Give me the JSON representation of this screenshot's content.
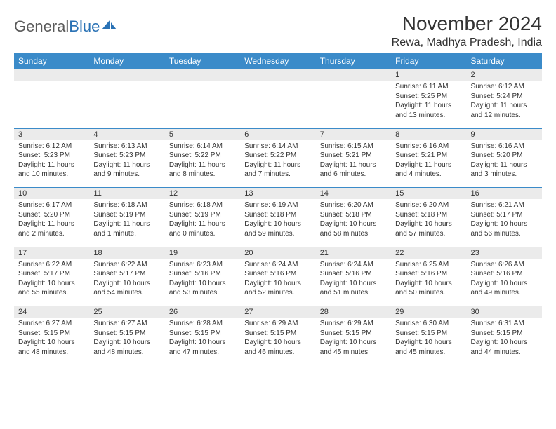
{
  "logo": {
    "text1": "General",
    "text2": "Blue"
  },
  "title": "November 2024",
  "location": "Rewa, Madhya Pradesh, India",
  "colors": {
    "header_bg": "#3b8bc9",
    "header_text": "#ffffff",
    "daynum_bg": "#ebebeb",
    "border": "#3b8bc9",
    "text": "#333333",
    "logo_gray": "#5a5a5a",
    "logo_blue": "#2a72b5"
  },
  "daysOfWeek": [
    "Sunday",
    "Monday",
    "Tuesday",
    "Wednesday",
    "Thursday",
    "Friday",
    "Saturday"
  ],
  "weeks": [
    [
      null,
      null,
      null,
      null,
      null,
      {
        "n": "1",
        "sr": "Sunrise: 6:11 AM",
        "ss": "Sunset: 5:25 PM",
        "dl": "Daylight: 11 hours and 13 minutes."
      },
      {
        "n": "2",
        "sr": "Sunrise: 6:12 AM",
        "ss": "Sunset: 5:24 PM",
        "dl": "Daylight: 11 hours and 12 minutes."
      }
    ],
    [
      {
        "n": "3",
        "sr": "Sunrise: 6:12 AM",
        "ss": "Sunset: 5:23 PM",
        "dl": "Daylight: 11 hours and 10 minutes."
      },
      {
        "n": "4",
        "sr": "Sunrise: 6:13 AM",
        "ss": "Sunset: 5:23 PM",
        "dl": "Daylight: 11 hours and 9 minutes."
      },
      {
        "n": "5",
        "sr": "Sunrise: 6:14 AM",
        "ss": "Sunset: 5:22 PM",
        "dl": "Daylight: 11 hours and 8 minutes."
      },
      {
        "n": "6",
        "sr": "Sunrise: 6:14 AM",
        "ss": "Sunset: 5:22 PM",
        "dl": "Daylight: 11 hours and 7 minutes."
      },
      {
        "n": "7",
        "sr": "Sunrise: 6:15 AM",
        "ss": "Sunset: 5:21 PM",
        "dl": "Daylight: 11 hours and 6 minutes."
      },
      {
        "n": "8",
        "sr": "Sunrise: 6:16 AM",
        "ss": "Sunset: 5:21 PM",
        "dl": "Daylight: 11 hours and 4 minutes."
      },
      {
        "n": "9",
        "sr": "Sunrise: 6:16 AM",
        "ss": "Sunset: 5:20 PM",
        "dl": "Daylight: 11 hours and 3 minutes."
      }
    ],
    [
      {
        "n": "10",
        "sr": "Sunrise: 6:17 AM",
        "ss": "Sunset: 5:20 PM",
        "dl": "Daylight: 11 hours and 2 minutes."
      },
      {
        "n": "11",
        "sr": "Sunrise: 6:18 AM",
        "ss": "Sunset: 5:19 PM",
        "dl": "Daylight: 11 hours and 1 minute."
      },
      {
        "n": "12",
        "sr": "Sunrise: 6:18 AM",
        "ss": "Sunset: 5:19 PM",
        "dl": "Daylight: 11 hours and 0 minutes."
      },
      {
        "n": "13",
        "sr": "Sunrise: 6:19 AM",
        "ss": "Sunset: 5:18 PM",
        "dl": "Daylight: 10 hours and 59 minutes."
      },
      {
        "n": "14",
        "sr": "Sunrise: 6:20 AM",
        "ss": "Sunset: 5:18 PM",
        "dl": "Daylight: 10 hours and 58 minutes."
      },
      {
        "n": "15",
        "sr": "Sunrise: 6:20 AM",
        "ss": "Sunset: 5:18 PM",
        "dl": "Daylight: 10 hours and 57 minutes."
      },
      {
        "n": "16",
        "sr": "Sunrise: 6:21 AM",
        "ss": "Sunset: 5:17 PM",
        "dl": "Daylight: 10 hours and 56 minutes."
      }
    ],
    [
      {
        "n": "17",
        "sr": "Sunrise: 6:22 AM",
        "ss": "Sunset: 5:17 PM",
        "dl": "Daylight: 10 hours and 55 minutes."
      },
      {
        "n": "18",
        "sr": "Sunrise: 6:22 AM",
        "ss": "Sunset: 5:17 PM",
        "dl": "Daylight: 10 hours and 54 minutes."
      },
      {
        "n": "19",
        "sr": "Sunrise: 6:23 AM",
        "ss": "Sunset: 5:16 PM",
        "dl": "Daylight: 10 hours and 53 minutes."
      },
      {
        "n": "20",
        "sr": "Sunrise: 6:24 AM",
        "ss": "Sunset: 5:16 PM",
        "dl": "Daylight: 10 hours and 52 minutes."
      },
      {
        "n": "21",
        "sr": "Sunrise: 6:24 AM",
        "ss": "Sunset: 5:16 PM",
        "dl": "Daylight: 10 hours and 51 minutes."
      },
      {
        "n": "22",
        "sr": "Sunrise: 6:25 AM",
        "ss": "Sunset: 5:16 PM",
        "dl": "Daylight: 10 hours and 50 minutes."
      },
      {
        "n": "23",
        "sr": "Sunrise: 6:26 AM",
        "ss": "Sunset: 5:16 PM",
        "dl": "Daylight: 10 hours and 49 minutes."
      }
    ],
    [
      {
        "n": "24",
        "sr": "Sunrise: 6:27 AM",
        "ss": "Sunset: 5:15 PM",
        "dl": "Daylight: 10 hours and 48 minutes."
      },
      {
        "n": "25",
        "sr": "Sunrise: 6:27 AM",
        "ss": "Sunset: 5:15 PM",
        "dl": "Daylight: 10 hours and 48 minutes."
      },
      {
        "n": "26",
        "sr": "Sunrise: 6:28 AM",
        "ss": "Sunset: 5:15 PM",
        "dl": "Daylight: 10 hours and 47 minutes."
      },
      {
        "n": "27",
        "sr": "Sunrise: 6:29 AM",
        "ss": "Sunset: 5:15 PM",
        "dl": "Daylight: 10 hours and 46 minutes."
      },
      {
        "n": "28",
        "sr": "Sunrise: 6:29 AM",
        "ss": "Sunset: 5:15 PM",
        "dl": "Daylight: 10 hours and 45 minutes."
      },
      {
        "n": "29",
        "sr": "Sunrise: 6:30 AM",
        "ss": "Sunset: 5:15 PM",
        "dl": "Daylight: 10 hours and 45 minutes."
      },
      {
        "n": "30",
        "sr": "Sunrise: 6:31 AM",
        "ss": "Sunset: 5:15 PM",
        "dl": "Daylight: 10 hours and 44 minutes."
      }
    ]
  ]
}
